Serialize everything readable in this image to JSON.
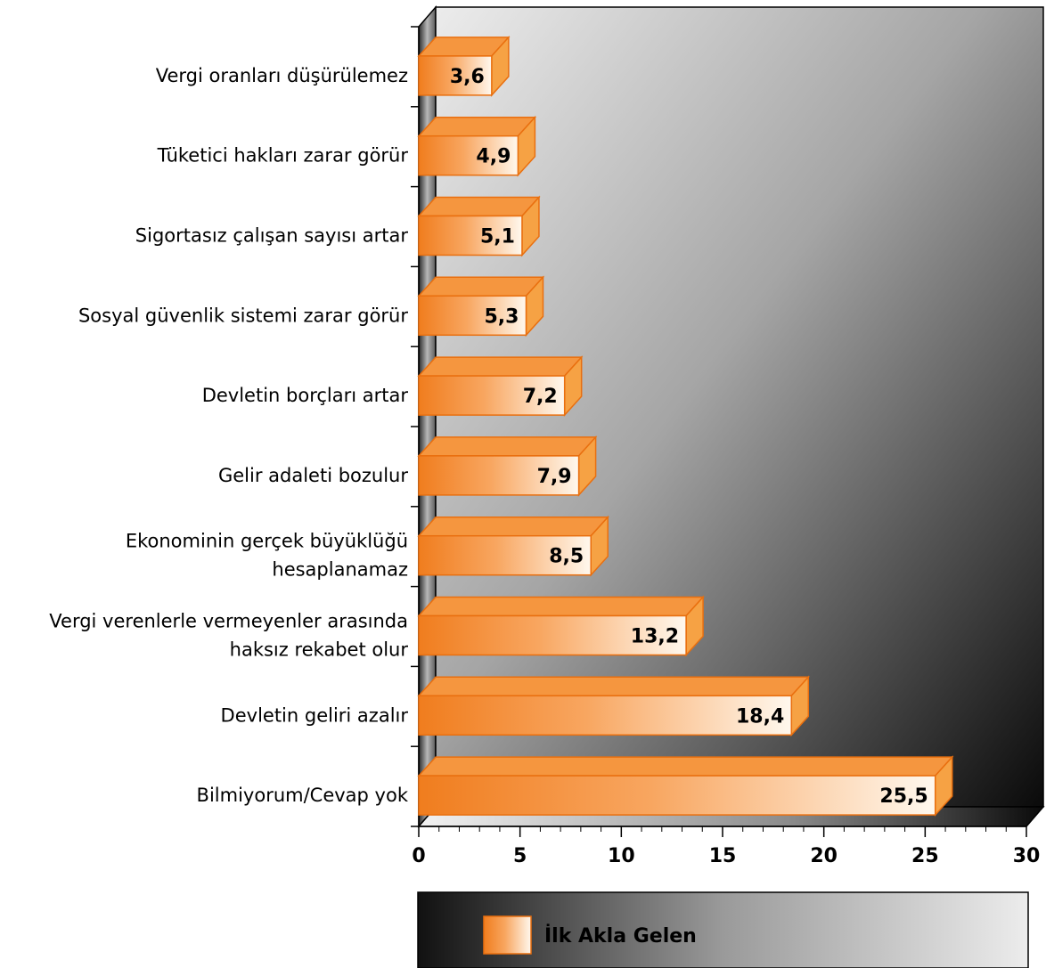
{
  "chart_data": {
    "type": "bar",
    "orientation": "horizontal",
    "categories": [
      "Vergi oranları düşürülemez",
      "Tüketici hakları zarar görür",
      "Sigortasız çalışan sayısı artar",
      "Sosyal güvenlik sistemi zarar görür",
      "Devletin borçları artar",
      "Gelir adaleti bozulur",
      "Ekonominin gerçek büyüklüğü hesaplanamaz",
      "Vergi verenlerle vermeyenler arasında haksız rekabet olur",
      "Devletin geliri azalır",
      "Bilmiyorum/Cevap yok"
    ],
    "category_lines": [
      [
        "Vergi oranları düşürülemez"
      ],
      [
        "Tüketici hakları zarar görür"
      ],
      [
        "Sigortasız çalışan sayısı artar"
      ],
      [
        "Sosyal güvenlik sistemi zarar görür"
      ],
      [
        "Devletin borçları artar"
      ],
      [
        "Gelir adaleti bozulur"
      ],
      [
        "Ekonominin gerçek büyüklüğü",
        "hesaplanamaz"
      ],
      [
        "Vergi verenlerle vermeyenler arasında",
        "haksız rekabet olur"
      ],
      [
        "Devletin geliri azalır"
      ],
      [
        "Bilmiyorum/Cevap yok"
      ]
    ],
    "series": [
      {
        "name": "İlk Akla Gelen",
        "values": [
          3.6,
          4.9,
          5.1,
          5.3,
          7.2,
          7.9,
          8.5,
          13.2,
          18.4,
          25.5
        ],
        "value_labels": [
          "3,6",
          "4,9",
          "5,1",
          "5,3",
          "7,2",
          "7,9",
          "8,5",
          "13,2",
          "18,4",
          "25,5"
        ]
      }
    ],
    "xlim": [
      0,
      30
    ],
    "x_ticks": [
      0,
      5,
      10,
      15,
      20,
      25,
      30
    ],
    "x_tick_labels": [
      "0",
      "5",
      "10",
      "15",
      "20",
      "25",
      "30"
    ],
    "xlabel": "",
    "ylabel": "",
    "title": "",
    "legend": {
      "position": "bottom"
    },
    "colors": {
      "bar_dark": "#f07d1e",
      "bar_light": "#fff8ee",
      "bar_top": "#f59a48",
      "bar_side": "#f5a040",
      "bar_edge": "#e96f0f",
      "wall_light": "#ececec",
      "wall_dark": "#0a0a0a"
    }
  }
}
